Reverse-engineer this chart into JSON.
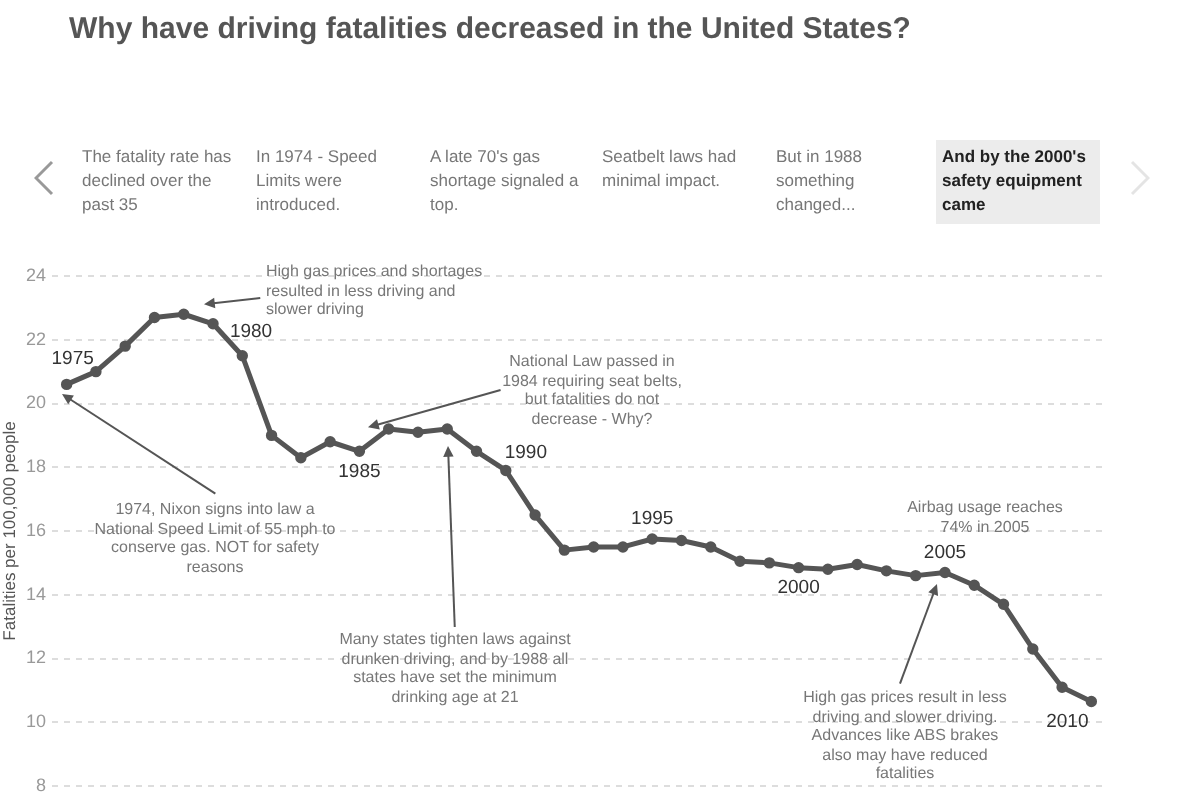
{
  "chart_data": {
    "type": "line",
    "title": "Why have driving fatalities decreased in the United States?",
    "ylabel": "Fatalities per 100,000 people",
    "categories": [
      null,
      null,
      null,
      null,
      null,
      null,
      null,
      null,
      null,
      null,
      null,
      null,
      null,
      null,
      null,
      null,
      null,
      null,
      null,
      null,
      null,
      null,
      null,
      null,
      null,
      null,
      null,
      null,
      null,
      null,
      null,
      null,
      null,
      null,
      null,
      null
    ],
    "series": [
      {
        "color": "#555555",
        "values": [
          20.6,
          21.0,
          21.8,
          22.7,
          22.8,
          22.5,
          21.5,
          19.0,
          18.3,
          18.8,
          18.5,
          19.2,
          19.1,
          19.2,
          18.5,
          17.9,
          16.5,
          15.4,
          15.5,
          15.5,
          15.75,
          15.7,
          15.5,
          15.05,
          15.0,
          14.85,
          14.8,
          14.95,
          14.75,
          14.6,
          14.7,
          14.3,
          13.7,
          12.3,
          11.1,
          10.65
        ]
      }
    ],
    "ylim": [
      8,
      24
    ],
    "yticks": [
      8,
      10,
      12,
      14,
      16,
      18,
      20,
      22,
      24
    ],
    "tick_labels": "y",
    "grid": "y",
    "legend": false,
    "marker": "circle",
    "line_style": "solid",
    "annotations": [
      "The fatality rate has declined over the past 35",
      "In 1974 - Speed Limits were introduced.",
      "A late 70's gas shortage signaled a top.",
      "Seatbelt laws had minimal impact.",
      "But in 1988 something changed...",
      "And by the 2000's safety equipment came",
      "1975",
      "1980",
      "1985",
      "1990",
      "1995",
      "2000",
      "2005",
      "2010",
      "High gas prices and shortages resulted in less driving and slower driving",
      "National Law passed in 1984 requiring seat belts, but fatalities do not decrease - Why?",
      "1974, Nixon signs into law a National Speed Limit of 55 mph to conserve gas. NOT for safety reasons",
      "Many states tighten laws against drunken driving, and by 1988 all states have set the minimum drinking age at 21",
      "Airbag usage reaches 74% in 2005",
      "High gas prices result in less driving and slower driving. Advances like ABS brakes also may have reduced fatalities"
    ]
  }
}
